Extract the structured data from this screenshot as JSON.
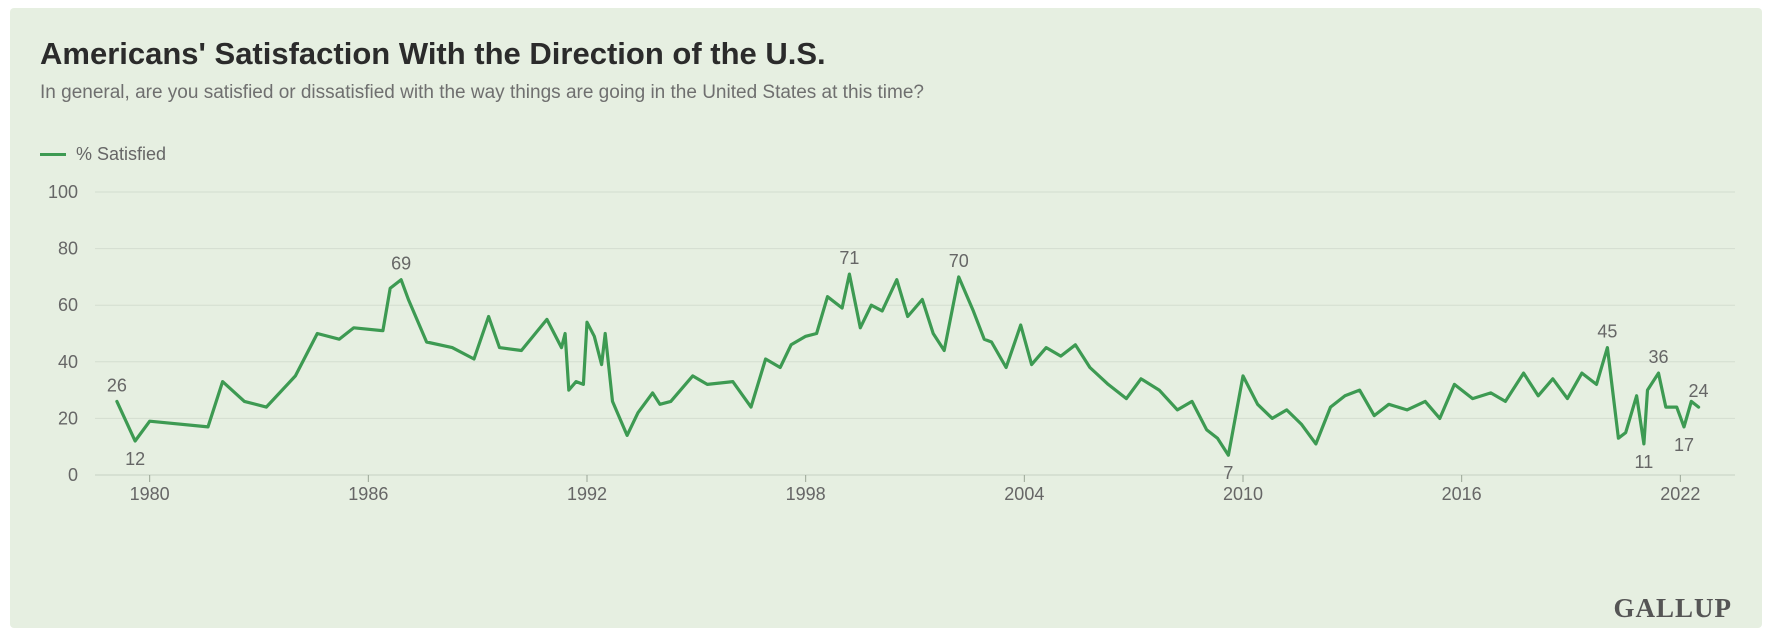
{
  "colors": {
    "series": "#3d9a52",
    "grid": "#d3ddcf",
    "background": "#e6efe1"
  },
  "brand": "GALLUP",
  "chart_data": {
    "type": "line",
    "title": "Americans' Satisfaction With the Direction of the U.S.",
    "subtitle": "In general, are you satisfied or dissatisfied with the way things are going in the United States at this time?",
    "legend": {
      "position": "top-left",
      "entries": [
        "% Satisfied"
      ]
    },
    "grid": true,
    "xlim": [
      1978.5,
      2023.5
    ],
    "ylim": [
      0,
      100
    ],
    "xticks": [
      1980,
      1986,
      1992,
      1998,
      2004,
      2010,
      2016,
      2022
    ],
    "yticks": [
      0,
      20,
      40,
      60,
      80,
      100
    ],
    "series": [
      {
        "name": "% Satisfied",
        "x": [
          1979.1,
          1979.6,
          1980.0,
          1981.6,
          1982.0,
          1982.6,
          1983.2,
          1984.0,
          1984.6,
          1985.2,
          1985.6,
          1986.4,
          1986.6,
          1986.9,
          1987.1,
          1987.6,
          1988.3,
          1988.9,
          1989.3,
          1989.6,
          1990.2,
          1990.9,
          1991.3,
          1991.4,
          1991.5,
          1991.7,
          1991.9,
          1992.0,
          1992.2,
          1992.4,
          1992.5,
          1992.7,
          1992.9,
          1993.1,
          1993.4,
          1993.8,
          1994.0,
          1994.3,
          1994.9,
          1995.3,
          1996.0,
          1996.5,
          1996.9,
          1997.3,
          1997.6,
          1998.0,
          1998.3,
          1998.6,
          1999.0,
          1999.2,
          1999.5,
          1999.8,
          2000.1,
          2000.5,
          2000.8,
          2001.2,
          2001.5,
          2001.8,
          2002.2,
          2002.6,
          2002.9,
          2003.1,
          2003.5,
          2003.9,
          2004.2,
          2004.6,
          2005.0,
          2005.4,
          2005.8,
          2006.3,
          2006.8,
          2007.2,
          2007.7,
          2008.2,
          2008.6,
          2009.0,
          2009.3,
          2009.6,
          2010.0,
          2010.4,
          2010.8,
          2011.2,
          2011.6,
          2012.0,
          2012.4,
          2012.8,
          2013.2,
          2013.6,
          2014.0,
          2014.5,
          2015.0,
          2015.4,
          2015.8,
          2016.3,
          2016.8,
          2017.2,
          2017.7,
          2018.1,
          2018.5,
          2018.9,
          2019.3,
          2019.7,
          2020.0,
          2020.3,
          2020.5,
          2020.8,
          2021.0,
          2021.1,
          2021.4,
          2021.6,
          2021.9,
          2022.1,
          2022.3,
          2022.5
        ],
        "values": [
          26,
          12,
          19,
          17,
          33,
          26,
          24,
          35,
          50,
          48,
          52,
          51,
          66,
          69,
          62,
          47,
          45,
          41,
          56,
          45,
          44,
          55,
          45,
          50,
          30,
          33,
          32,
          54,
          49,
          39,
          50,
          26,
          20,
          14,
          22,
          29,
          25,
          26,
          35,
          32,
          33,
          24,
          41,
          38,
          46,
          49,
          50,
          63,
          59,
          71,
          52,
          60,
          58,
          69,
          56,
          62,
          50,
          44,
          70,
          58,
          48,
          47,
          38,
          53,
          39,
          45,
          42,
          46,
          38,
          32,
          27,
          34,
          30,
          23,
          26,
          16,
          13,
          7,
          35,
          25,
          20,
          23,
          18,
          11,
          24,
          28,
          30,
          21,
          25,
          23,
          26,
          20,
          32,
          27,
          29,
          26,
          36,
          28,
          34,
          27,
          36,
          32,
          45,
          13,
          15,
          28,
          11,
          30,
          36,
          24,
          24,
          17,
          26,
          24
        ]
      }
    ],
    "annotations": [
      {
        "x": 1979.1,
        "y": 26,
        "label": "26",
        "pos": "above"
      },
      {
        "x": 1979.6,
        "y": 12,
        "label": "12",
        "pos": "below"
      },
      {
        "x": 1986.9,
        "y": 69,
        "label": "69",
        "pos": "above"
      },
      {
        "x": 1999.2,
        "y": 71,
        "label": "71",
        "pos": "above"
      },
      {
        "x": 2002.2,
        "y": 70,
        "label": "70",
        "pos": "above"
      },
      {
        "x": 2009.6,
        "y": 7,
        "label": "7",
        "pos": "below"
      },
      {
        "x": 2020.0,
        "y": 45,
        "label": "45",
        "pos": "above"
      },
      {
        "x": 2021.0,
        "y": 11,
        "label": "11",
        "pos": "below"
      },
      {
        "x": 2021.4,
        "y": 36,
        "label": "36",
        "pos": "above"
      },
      {
        "x": 2022.1,
        "y": 17,
        "label": "17",
        "pos": "below"
      },
      {
        "x": 2022.5,
        "y": 24,
        "label": "24",
        "pos": "above"
      }
    ]
  }
}
